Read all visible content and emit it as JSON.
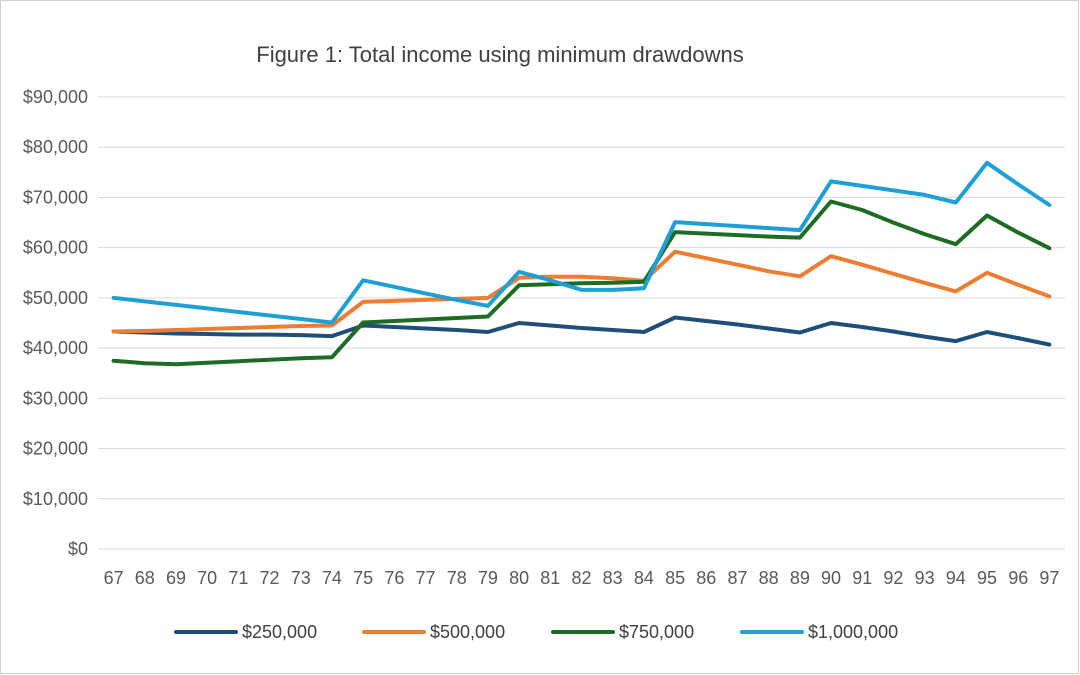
{
  "chart_data": {
    "type": "line",
    "title": "Figure 1: Total income using minimum drawdowns",
    "xlabel": "",
    "ylabel": "",
    "ylim": [
      0,
      90000
    ],
    "yticks": [
      "$0",
      "$10,000",
      "$20,000",
      "$30,000",
      "$40,000",
      "$50,000",
      "$60,000",
      "$70,000",
      "$80,000",
      "$90,000"
    ],
    "ytick_values": [
      0,
      10000,
      20000,
      30000,
      40000,
      50000,
      60000,
      70000,
      80000,
      90000
    ],
    "categories": [
      "67",
      "68",
      "69",
      "70",
      "71",
      "72",
      "73",
      "74",
      "75",
      "76",
      "77",
      "78",
      "79",
      "80",
      "81",
      "82",
      "83",
      "84",
      "85",
      "86",
      "87",
      "88",
      "89",
      "90",
      "91",
      "92",
      "93",
      "94",
      "95",
      "96",
      "97"
    ],
    "grid": true,
    "legend_position": "bottom",
    "series": [
      {
        "name": "$250,000",
        "color": "#1f4e79",
        "values": [
          43300,
          43100,
          42900,
          42800,
          42700,
          42700,
          42600,
          42400,
          44500,
          44200,
          43900,
          43600,
          43200,
          45000,
          44500,
          44000,
          43600,
          43200,
          46100,
          45400,
          44700,
          43900,
          43100,
          45000,
          44200,
          43300,
          42300,
          41400,
          43200,
          42000,
          40700
        ]
      },
      {
        "name": "$500,000",
        "color": "#ed7d31",
        "values": [
          43300,
          43400,
          43600,
          43800,
          44000,
          44200,
          44400,
          44500,
          49200,
          49400,
          49600,
          49800,
          50000,
          54000,
          54200,
          54200,
          53900,
          53400,
          59200,
          57900,
          56600,
          55300,
          54300,
          58300,
          56600,
          54800,
          53000,
          51300,
          55000,
          52600,
          50300
        ]
      },
      {
        "name": "$750,000",
        "color": "#1e6b24",
        "values": [
          37500,
          37000,
          36800,
          37100,
          37400,
          37700,
          38000,
          38200,
          45100,
          45400,
          45700,
          46000,
          46300,
          52500,
          52700,
          52900,
          53000,
          53200,
          63100,
          62800,
          62500,
          62200,
          62000,
          69200,
          67500,
          65000,
          62700,
          60700,
          66400,
          63000,
          59900
        ]
      },
      {
        "name": "$1,000,000",
        "color": "#1ea0d6",
        "values": [
          50000,
          49300,
          48600,
          47900,
          47200,
          46500,
          45800,
          45100,
          53500,
          52200,
          50900,
          49600,
          48400,
          55200,
          53500,
          51600,
          51600,
          51900,
          65100,
          64700,
          64300,
          63900,
          63500,
          73200,
          72300,
          71400,
          70500,
          69000,
          76900,
          72600,
          68500
        ]
      }
    ]
  }
}
